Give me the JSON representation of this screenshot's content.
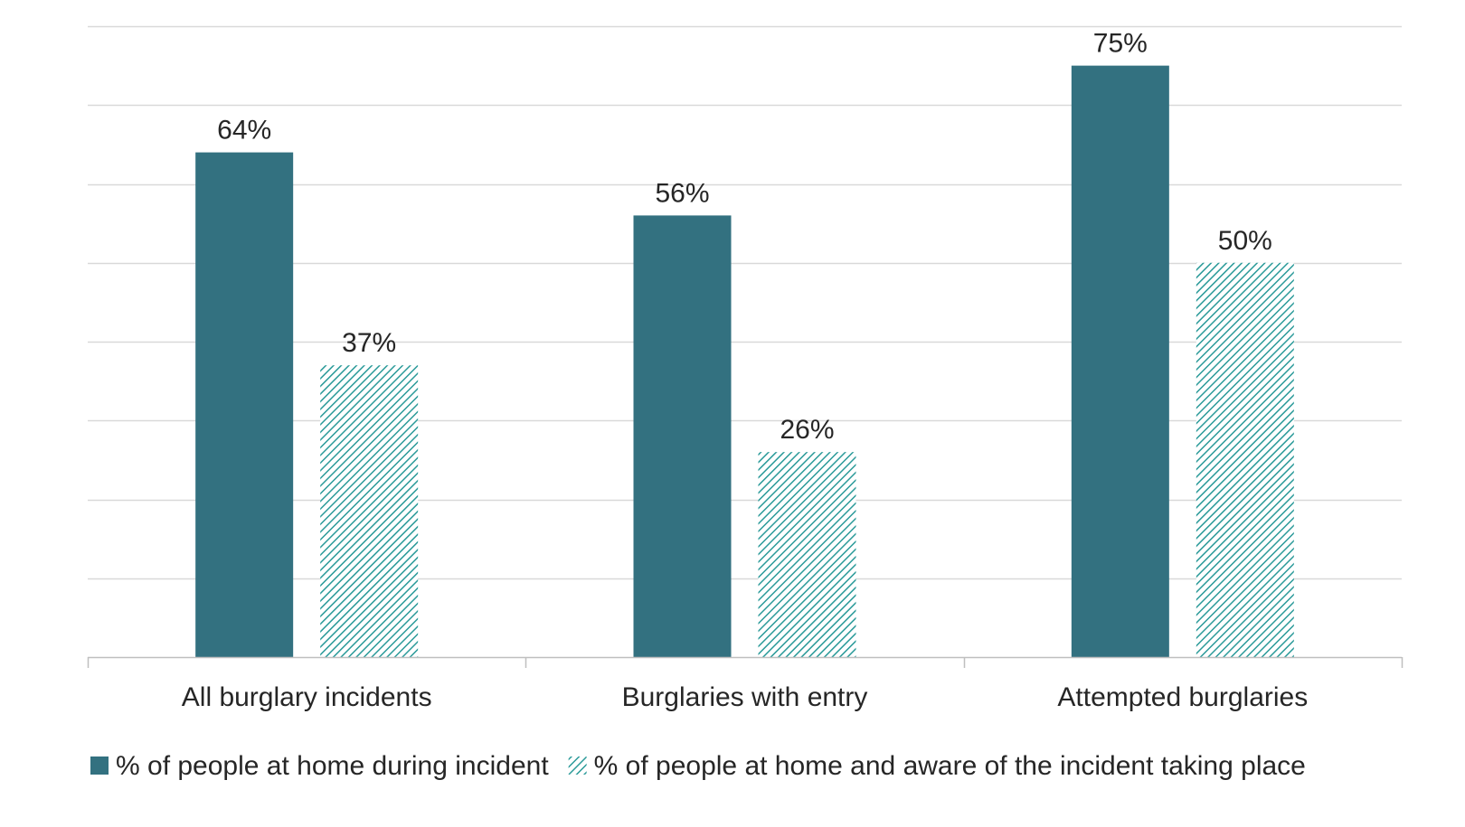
{
  "chart_data": {
    "type": "bar",
    "categories": [
      "All burglary incidents",
      "Burglaries with entry",
      "Attempted burglaries"
    ],
    "series": [
      {
        "name": "% of people at home during incident",
        "values": [
          64,
          56,
          75
        ],
        "labels": [
          "64%",
          "56%",
          "75%"
        ],
        "color": "#337180",
        "pattern": "solid"
      },
      {
        "name": "% of people at home and aware of the incident taking place",
        "values": [
          37,
          26,
          50
        ],
        "labels": [
          "37%",
          "26%",
          "50%"
        ],
        "color": "#2a9a99",
        "pattern": "diagonal-hatch"
      }
    ],
    "ylim": [
      0,
      80
    ],
    "gridlines": [
      0,
      10,
      20,
      30,
      40,
      50,
      60,
      70,
      80
    ],
    "y_tick_labels_shown": false,
    "grid": true,
    "legend_position": "bottom-left"
  }
}
